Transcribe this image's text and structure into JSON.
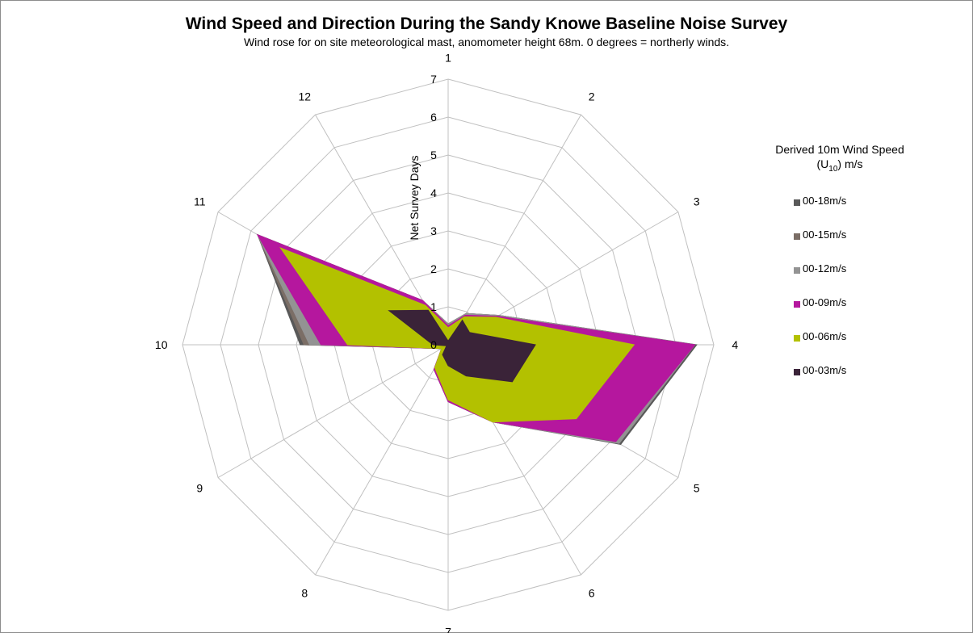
{
  "title": "Wind Speed and Direction During the Sandy Knowe Baseline Noise Survey",
  "subtitle": "Wind rose for on site meteorological mast, anomometer height 68m. 0 degrees = northerly winds.",
  "legend": {
    "title_prefix": "Derived 10m Wind Speed (U",
    "title_sub": "10",
    "title_suffix": ") m/s"
  },
  "chart_data": {
    "type": "radar",
    "categories": [
      "1",
      "2",
      "3",
      "4",
      "5",
      "6",
      "7",
      "8",
      "9",
      "10",
      "11",
      "12"
    ],
    "radial_axis": {
      "label": "Net Survey Days",
      "min": 0,
      "max": 7,
      "ticks": [
        "0",
        "1",
        "2",
        "3",
        "4",
        "5",
        "6",
        "7"
      ]
    },
    "grid": true,
    "legend_position": "right",
    "series": [
      {
        "name": "00-18m/s",
        "color": "#595959",
        "values": [
          0.55,
          0.95,
          1.55,
          6.55,
          5.25,
          2.35,
          1.5,
          0.75,
          0.2,
          3.9,
          5.8,
          1.35
        ]
      },
      {
        "name": "00-15m/s",
        "color": "#7b6e66",
        "values": [
          0.55,
          0.95,
          1.55,
          6.5,
          5.2,
          2.35,
          1.5,
          0.75,
          0.2,
          3.8,
          5.8,
          1.35
        ]
      },
      {
        "name": "00-12m/s",
        "color": "#939393",
        "values": [
          0.55,
          0.95,
          1.55,
          6.5,
          5.2,
          2.35,
          1.5,
          0.75,
          0.2,
          3.65,
          5.8,
          1.35
        ]
      },
      {
        "name": "00-09m/s",
        "color": "#b5179e",
        "values": [
          0.5,
          0.9,
          1.5,
          6.5,
          5.1,
          2.35,
          1.5,
          0.75,
          0.2,
          3.35,
          5.8,
          1.35
        ]
      },
      {
        "name": "00-06m/s",
        "color": "#b3c100",
        "values": [
          0.45,
          0.85,
          1.45,
          4.9,
          3.9,
          2.35,
          1.45,
          0.7,
          0.2,
          2.65,
          5.1,
          1.2
        ]
      },
      {
        "name": "00-03m/s",
        "color": "#3a2338",
        "values": [
          0.1,
          0.75,
          0.65,
          2.3,
          1.95,
          0.95,
          0.55,
          0.3,
          0.05,
          0.4,
          1.8,
          1.05
        ]
      }
    ]
  }
}
